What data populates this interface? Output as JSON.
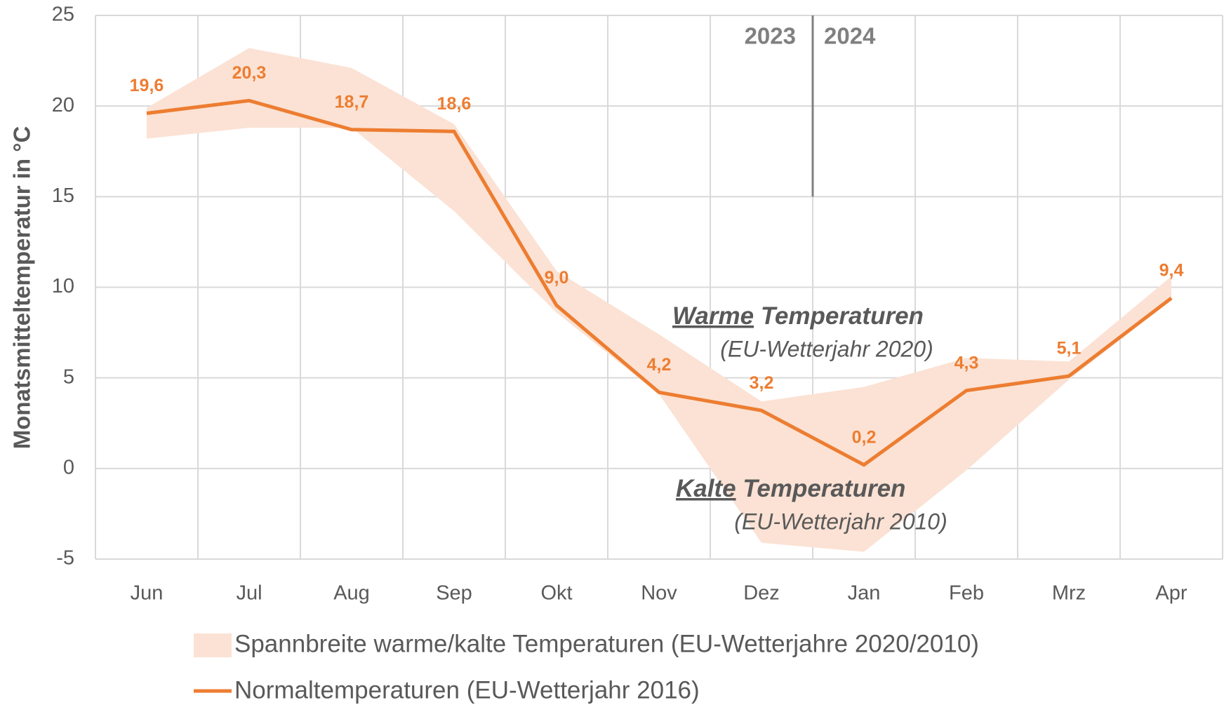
{
  "chart_data": {
    "type": "line",
    "y_label": "Monatsmitteltemperatur in °C",
    "categories": [
      "Jun",
      "Jul",
      "Aug",
      "Sep",
      "Okt",
      "Nov",
      "Dez",
      "Jan",
      "Feb",
      "Mrz",
      "Apr"
    ],
    "band": {
      "name": "Spannbreite warme/kalte Temperaturen (EU-Wetterjahre 2020/2010)",
      "color": "#fbe2d4",
      "low": [
        18.2,
        18.8,
        18.8,
        14.2,
        8.6,
        4.1,
        -4.1,
        -4.6,
        -0.1,
        4.9,
        9.3
      ],
      "high": [
        19.9,
        23.2,
        22.1,
        19.0,
        10.9,
        7.4,
        3.7,
        4.5,
        6.1,
        5.9,
        10.6
      ]
    },
    "series": [
      {
        "name": "Normaltemperaturen (EU-Wetterjahr 2016)",
        "color": "#ed7d31",
        "values": [
          19.6,
          20.3,
          18.7,
          18.6,
          9.0,
          4.2,
          3.2,
          0.2,
          4.3,
          5.1,
          9.4
        ],
        "value_labels": [
          "19,6",
          "20,3",
          "18,7",
          "18,6",
          "9,0",
          "4,2",
          "3,2",
          "0,2",
          "4,3",
          "5,1",
          "9,4"
        ]
      }
    ],
    "ylim": [
      -5,
      25
    ],
    "yticks": [
      -5,
      0,
      5,
      10,
      15,
      20,
      25
    ],
    "grid": true,
    "years": [
      "2023",
      "2024"
    ],
    "annotations": [
      {
        "underlined": "Warme",
        "text": "Temperaturen",
        "note": "(EU-Wetterjahr 2020)"
      },
      {
        "underlined": "Kalte",
        "text": "Temperaturen",
        "note": "(EU-Wetterjahr 2010)"
      }
    ]
  }
}
